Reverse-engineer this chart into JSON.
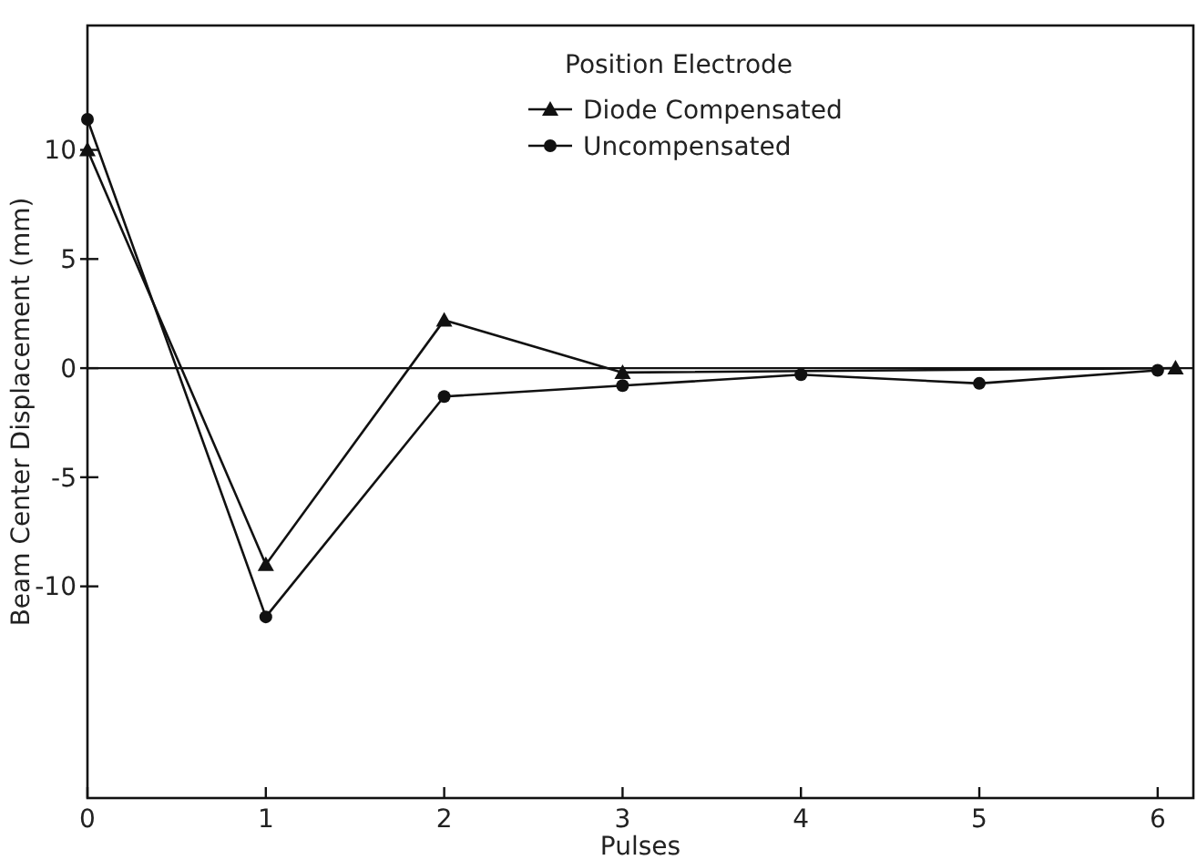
{
  "chart_data": {
    "type": "line",
    "xlabel": "Pulses",
    "ylabel": "Beam Center Displacement (mm)",
    "legend_title": "Position Electrode",
    "legend": "top right",
    "grid": false,
    "xlim": [
      0,
      6.2
    ],
    "xticks": [
      0,
      1,
      2,
      3,
      4,
      5,
      6
    ],
    "ylim": [
      -19.7,
      15.7
    ],
    "yticks": [
      -10,
      -5,
      0,
      5,
      10
    ],
    "ref_lines": [
      {
        "axis": "y",
        "value": 0,
        "color": "#111111"
      }
    ],
    "series": [
      {
        "name": "Diode Compensated",
        "color": "#111111",
        "marker": "triangle",
        "x": [
          0,
          1,
          2,
          3,
          6.1
        ],
        "values": [
          10,
          -9,
          2.2,
          -0.2,
          0
        ]
      },
      {
        "name": "Uncompensated",
        "color": "#111111",
        "marker": "circle",
        "x": [
          0,
          1,
          2,
          3,
          4,
          5,
          6
        ],
        "values": [
          11.4,
          -11.4,
          -1.3,
          -0.8,
          -0.3,
          -0.7,
          -0.1
        ]
      }
    ]
  }
}
